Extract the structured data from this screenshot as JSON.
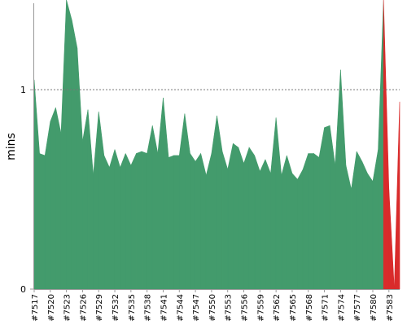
{
  "chart_data": {
    "type": "area",
    "title": "",
    "xlabel": "",
    "ylabel": "mins",
    "ylim": [
      0,
      1.45
    ],
    "y_ticks": [
      0,
      1
    ],
    "y_tick_labels": [
      "0",
      "1"
    ],
    "reference_line": {
      "value": 1,
      "style": "dotted"
    },
    "grid": false,
    "legend": "none",
    "colors": {
      "fill": "#439b6c",
      "failure": "#d92b2b",
      "axis": "#999999",
      "reference": "#777777",
      "text": "#000000"
    },
    "builds": [
      7517,
      7518,
      7519,
      7520,
      7521,
      7522,
      7523,
      7524,
      7525,
      7526,
      7527,
      7528,
      7529,
      7530,
      7531,
      7532,
      7533,
      7534,
      7535,
      7536,
      7537,
      7538,
      7539,
      7540,
      7541,
      7542,
      7543,
      7544,
      7545,
      7546,
      7547,
      7548,
      7549,
      7550,
      7551,
      7552,
      7553,
      7554,
      7555,
      7556,
      7557,
      7558,
      7559,
      7560,
      7561,
      7562,
      7563,
      7564,
      7565,
      7566,
      7567,
      7568,
      7569,
      7570,
      7571,
      7572,
      7573,
      7574,
      7575,
      7576,
      7577,
      7578,
      7579,
      7580,
      7581,
      7582,
      7583,
      7584,
      7585
    ],
    "x_tick_labels": [
      "#7517",
      "#7520",
      "#7523",
      "#7526",
      "#7529",
      "#7532",
      "#7535",
      "#7538",
      "#7541",
      "#7544",
      "#7547",
      "#7550",
      "#7553",
      "#7556",
      "#7559",
      "#7562",
      "#7565",
      "#7568",
      "#7571",
      "#7574",
      "#7577",
      "#7580",
      "#7583"
    ],
    "values": [
      1.05,
      0.68,
      0.67,
      0.84,
      0.91,
      0.78,
      1.5,
      1.35,
      1.21,
      0.74,
      0.9,
      0.57,
      0.89,
      0.67,
      0.61,
      0.7,
      0.61,
      0.68,
      0.62,
      0.68,
      0.69,
      0.68,
      0.82,
      0.68,
      0.96,
      0.66,
      0.67,
      0.67,
      0.88,
      0.68,
      0.64,
      0.68,
      0.57,
      0.68,
      0.87,
      0.69,
      0.6,
      0.73,
      0.71,
      0.63,
      0.71,
      0.67,
      0.59,
      0.65,
      0.58,
      0.86,
      0.57,
      0.67,
      0.58,
      0.55,
      0.6,
      0.68,
      0.68,
      0.66,
      0.81,
      0.82,
      0.62,
      1.1,
      0.62,
      0.5,
      0.69,
      0.64,
      0.58,
      0.54,
      0.7,
      1.5,
      0.5,
      0.0,
      0.94
    ],
    "status": [
      "success",
      "success",
      "success",
      "success",
      "success",
      "success",
      "success",
      "success",
      "success",
      "success",
      "success",
      "success",
      "success",
      "success",
      "success",
      "success",
      "success",
      "success",
      "success",
      "success",
      "success",
      "success",
      "success",
      "success",
      "success",
      "success",
      "success",
      "success",
      "success",
      "success",
      "success",
      "success",
      "success",
      "success",
      "success",
      "success",
      "success",
      "success",
      "success",
      "success",
      "success",
      "success",
      "success",
      "success",
      "success",
      "success",
      "success",
      "success",
      "success",
      "success",
      "success",
      "success",
      "success",
      "success",
      "success",
      "success",
      "success",
      "success",
      "success",
      "success",
      "success",
      "success",
      "success",
      "success",
      "success",
      "success",
      "failure",
      "failure",
      "success"
    ]
  }
}
